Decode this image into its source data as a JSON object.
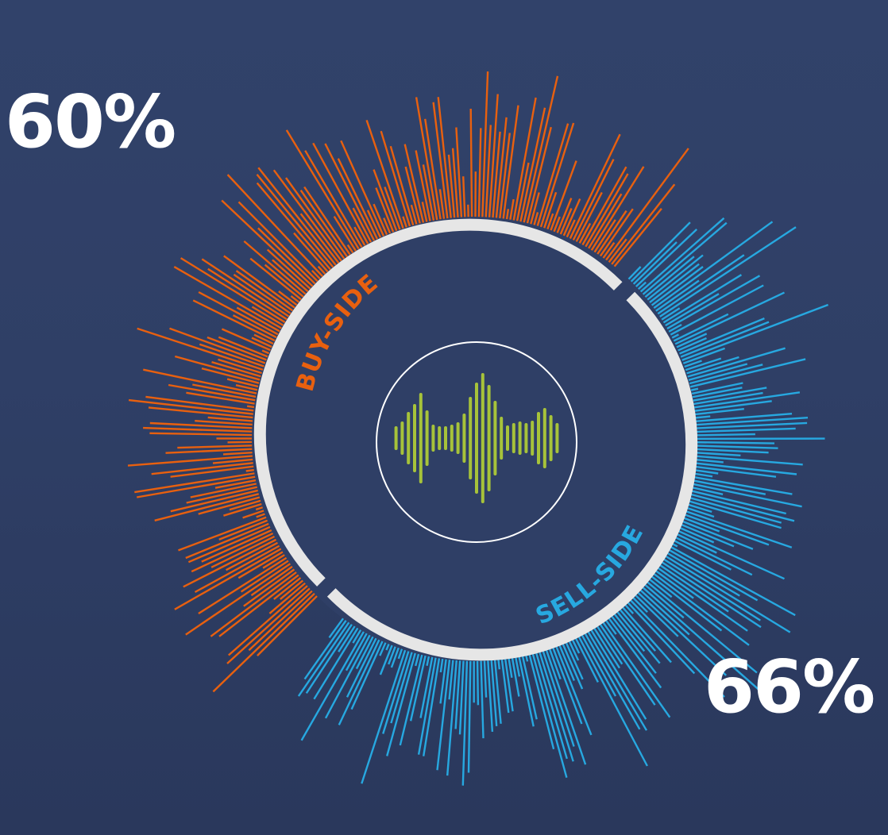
{
  "colors": {
    "background": "#2f3f66",
    "buy_side": "#e8600f",
    "sell_side": "#27a8e0",
    "ring": "#e6e6e6",
    "waveform": "#a7c33a",
    "text": "#ffffff"
  },
  "buy_side": {
    "label": "BUY-SIDE",
    "percent": "60%",
    "percent_value": 60
  },
  "sell_side": {
    "label": "SELL-SIDE",
    "percent": "66%",
    "percent_value": 66
  },
  "center_icon": "audio-waveform-icon"
}
